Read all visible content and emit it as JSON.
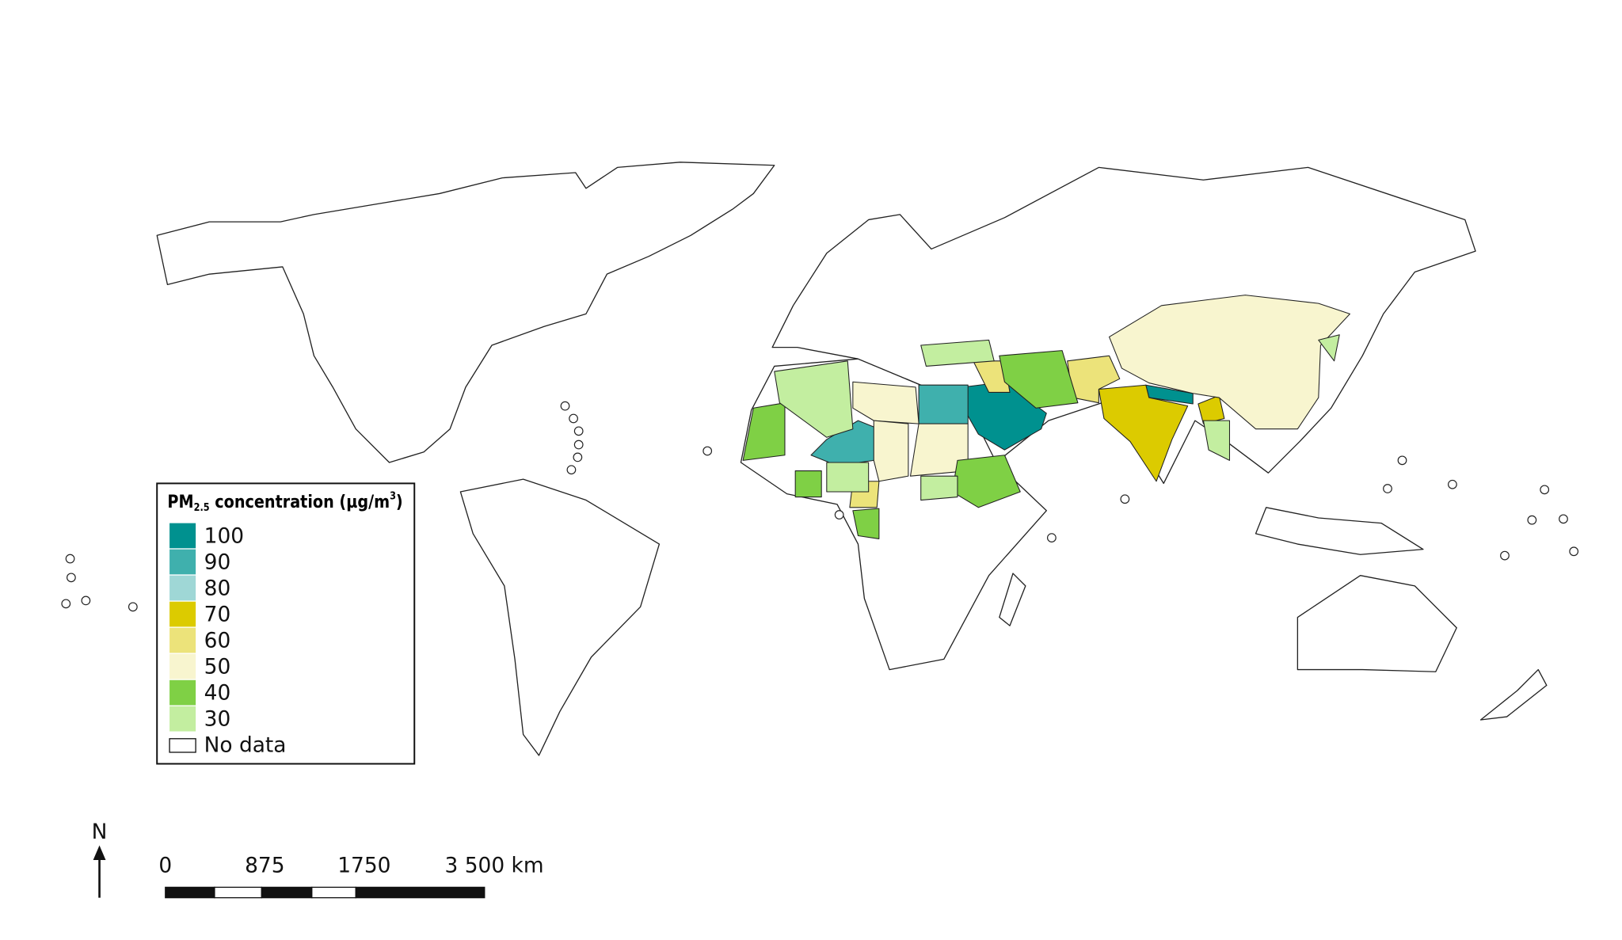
{
  "legend": {
    "title": {
      "main": "PM",
      "sub": "2.5",
      "rest": " concentration (µg/m",
      "sup": "3",
      "end": ")"
    },
    "items": [
      {
        "value": 100,
        "color": "#00918f"
      },
      {
        "value": 90,
        "color": "#3fb0ad"
      },
      {
        "value": 80,
        "color": "#9fd7d6"
      },
      {
        "value": 70,
        "color": "#dccb00"
      },
      {
        "value": 60,
        "color": "#ece37a"
      },
      {
        "value": 50,
        "color": "#f8f5cf"
      },
      {
        "value": 40,
        "color": "#7fd045"
      },
      {
        "value": 30,
        "color": "#c3eea0"
      }
    ],
    "no_data": "No data"
  },
  "north": "N",
  "scale_bar": [
    "0",
    "875",
    "1750",
    "3 500 km"
  ]
}
